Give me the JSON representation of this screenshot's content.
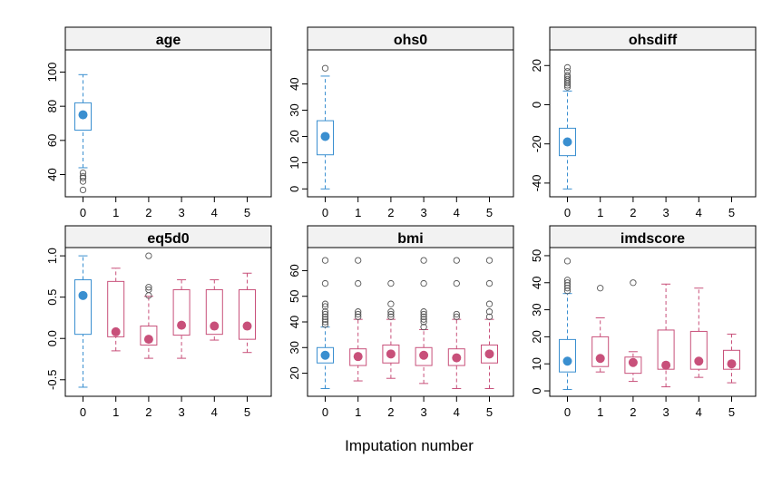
{
  "xlabel": "Imputation number",
  "colors": {
    "observed": "#3a8fd0",
    "imputed": "#c8507a",
    "strip": "#f2f2f2"
  },
  "chart_data": [
    {
      "type": "boxplot",
      "title": "age",
      "categories": [
        "0",
        "1",
        "2",
        "3",
        "4",
        "5"
      ],
      "ylim": [
        27,
        113
      ],
      "yticks": [
        40,
        60,
        80,
        100
      ],
      "boxes": [
        {
          "x": "0",
          "whisker_low": 44,
          "q1": 66,
          "median": 75,
          "mean": 75.5,
          "q3": 82,
          "whisker_high": 98.5,
          "outliers": [
            31,
            36,
            38,
            39,
            41
          ]
        }
      ]
    },
    {
      "type": "boxplot",
      "title": "ohs0",
      "categories": [
        "0",
        "1",
        "2",
        "3",
        "4",
        "5"
      ],
      "ylim": [
        -3,
        53
      ],
      "yticks": [
        0,
        10,
        20,
        30,
        40
      ],
      "boxes": [
        {
          "x": "0",
          "whisker_low": 0,
          "q1": 13,
          "median": 20,
          "mean": 20,
          "q3": 26,
          "whisker_high": 43,
          "outliers": [
            46
          ]
        }
      ]
    },
    {
      "type": "boxplot",
      "title": "ohsdiff",
      "categories": [
        "0",
        "1",
        "2",
        "3",
        "4",
        "5"
      ],
      "ylim": [
        -47,
        28
      ],
      "yticks": [
        -40,
        -20,
        0,
        20
      ],
      "boxes": [
        {
          "x": "0",
          "whisker_low": -43,
          "q1": -26,
          "median": -19,
          "mean": -19,
          "q3": -12,
          "whisker_high": 7,
          "outliers": [
            9,
            10,
            11,
            12,
            13,
            14,
            15,
            17,
            19
          ]
        }
      ]
    },
    {
      "type": "boxplot",
      "title": "eq5d0",
      "categories": [
        "0",
        "1",
        "2",
        "3",
        "4",
        "5"
      ],
      "ylim": [
        -0.7,
        1.1
      ],
      "yticks": [
        -0.5,
        0.0,
        0.5,
        1.0
      ],
      "ytick_labels": [
        "-0.5",
        "0.0",
        "0.5",
        "1.0"
      ],
      "boxes": [
        {
          "x": "0",
          "whisker_low": -0.59,
          "q1": 0.05,
          "median": 0.52,
          "mean": 0.52,
          "q3": 0.71,
          "whisker_high": 1.0,
          "outliers": []
        },
        {
          "x": "1",
          "whisker_low": -0.15,
          "q1": 0.02,
          "median": 0.08,
          "mean": 0.08,
          "q3": 0.69,
          "whisker_high": 0.85,
          "outliers": []
        },
        {
          "x": "2",
          "whisker_low": -0.24,
          "q1": -0.08,
          "median": -0.01,
          "mean": -0.01,
          "q3": 0.15,
          "whisker_high": 0.51,
          "outliers": [
            0.52,
            0.59,
            0.62,
            1.0
          ]
        },
        {
          "x": "3",
          "whisker_low": -0.24,
          "q1": 0.04,
          "median": 0.16,
          "mean": 0.16,
          "q3": 0.59,
          "whisker_high": 0.71,
          "outliers": []
        },
        {
          "x": "4",
          "whisker_low": -0.02,
          "q1": 0.05,
          "median": 0.15,
          "mean": 0.15,
          "q3": 0.59,
          "whisker_high": 0.71,
          "outliers": []
        },
        {
          "x": "5",
          "whisker_low": -0.17,
          "q1": -0.01,
          "median": 0.15,
          "mean": 0.15,
          "q3": 0.59,
          "whisker_high": 0.79,
          "outliers": []
        }
      ]
    },
    {
      "type": "boxplot",
      "title": "bmi",
      "categories": [
        "0",
        "1",
        "2",
        "3",
        "4",
        "5"
      ],
      "ylim": [
        11,
        69
      ],
      "yticks": [
        20,
        30,
        40,
        50,
        60
      ],
      "boxes": [
        {
          "x": "0",
          "whisker_low": 14,
          "q1": 24,
          "median": 27,
          "mean": 27,
          "q3": 30,
          "whisker_high": 38,
          "outliers": [
            39,
            40,
            41,
            42,
            43,
            44,
            46,
            47,
            55,
            64
          ]
        },
        {
          "x": "1",
          "whisker_low": 17,
          "q1": 23,
          "median": 26.5,
          "mean": 27,
          "q3": 29.5,
          "whisker_high": 41,
          "outliers": [
            42,
            43,
            44,
            55,
            64
          ]
        },
        {
          "x": "2",
          "whisker_low": 18,
          "q1": 24,
          "median": 27.5,
          "mean": 27.5,
          "q3": 31,
          "whisker_high": 41,
          "outliers": [
            42,
            43,
            44,
            47,
            55
          ]
        },
        {
          "x": "3",
          "whisker_low": 16,
          "q1": 23,
          "median": 27,
          "mean": 27,
          "q3": 30,
          "whisker_high": 37,
          "outliers": [
            38,
            40,
            41,
            42,
            43,
            44,
            55,
            64
          ]
        },
        {
          "x": "4",
          "whisker_low": 14,
          "q1": 23,
          "median": 26,
          "mean": 26,
          "q3": 29.5,
          "whisker_high": 41,
          "outliers": [
            42,
            43,
            55,
            64
          ]
        },
        {
          "x": "5",
          "whisker_low": 14,
          "q1": 24,
          "median": 27.5,
          "mean": 27.5,
          "q3": 31,
          "whisker_high": 41,
          "outliers": [
            42,
            44,
            47,
            55,
            64
          ]
        }
      ]
    },
    {
      "type": "boxplot",
      "title": "imdscore",
      "categories": [
        "0",
        "1",
        "2",
        "3",
        "4",
        "5"
      ],
      "ylim": [
        -2,
        53
      ],
      "yticks": [
        0,
        10,
        20,
        30,
        40,
        50
      ],
      "boxes": [
        {
          "x": "0",
          "whisker_low": 0.5,
          "q1": 7,
          "median": 11,
          "mean": 11,
          "q3": 19,
          "whisker_high": 36,
          "outliers": [
            37,
            38,
            39,
            40,
            41,
            48
          ]
        },
        {
          "x": "1",
          "whisker_low": 7,
          "q1": 9,
          "median": 12,
          "mean": 12,
          "q3": 20,
          "whisker_high": 27,
          "outliers": [
            38
          ]
        },
        {
          "x": "2",
          "whisker_low": 3.5,
          "q1": 6.5,
          "median": 10.5,
          "mean": 10.5,
          "q3": 12.5,
          "whisker_high": 14.5,
          "outliers": [
            40
          ]
        },
        {
          "x": "3",
          "whisker_low": 1.5,
          "q1": 8,
          "median": 9.5,
          "mean": 9.5,
          "q3": 22.5,
          "whisker_high": 39.5,
          "outliers": []
        },
        {
          "x": "4",
          "whisker_low": 5,
          "q1": 8,
          "median": 11,
          "mean": 11,
          "q3": 22,
          "whisker_high": 38,
          "outliers": []
        },
        {
          "x": "5",
          "whisker_low": 3,
          "q1": 8,
          "median": 10,
          "mean": 10,
          "q3": 15,
          "whisker_high": 21,
          "outliers": []
        }
      ]
    }
  ]
}
